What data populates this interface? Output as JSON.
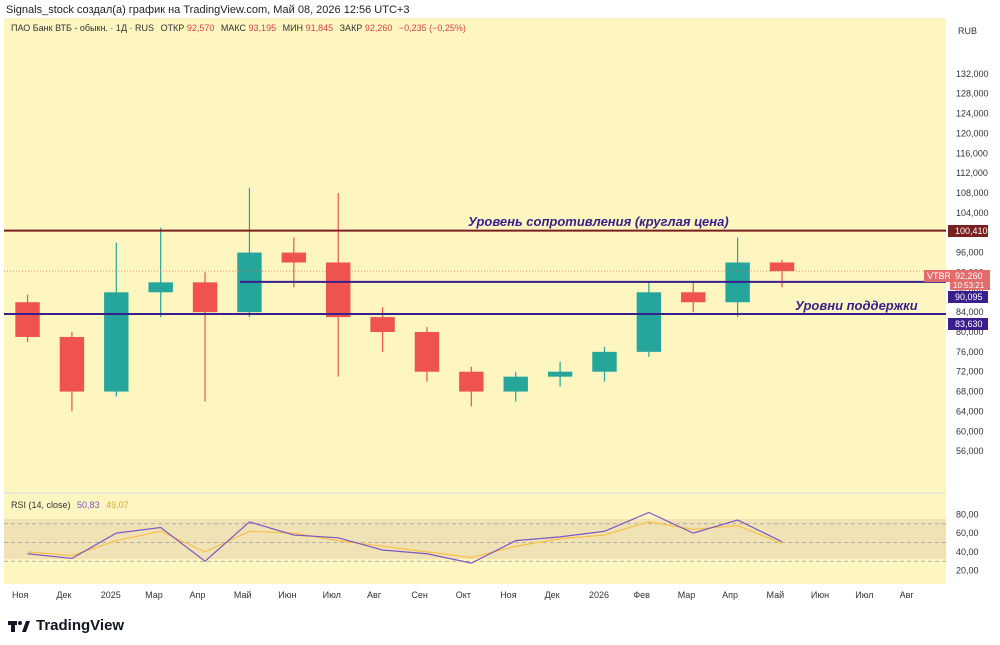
{
  "header": {
    "byline": "Signals_stock создал(а) график на TradingView.com, Май 08, 2026 12:56 UTC+3"
  },
  "legend": {
    "instrument": "ПАО Банк ВТБ - обыкн. · 1Д · RUS",
    "o_label": "ОТКР",
    "o_value": "92,570",
    "h_label": "МАКС",
    "h_value": "93,195",
    "l_label": "МИН",
    "l_value": "91,845",
    "c_label": "ЗАКР",
    "c_value": "92,260",
    "change": "−0,235 (−0,25%)",
    "currency": "RUB",
    "rsi_label": "RSI (14, close)",
    "rsi_value": "50,83",
    "rsi_ma_value": "49,07"
  },
  "annotations": {
    "resistance": "Уровень сопротивления (круглая цена)",
    "support": "Уровни поддержки"
  },
  "price_tags": {
    "resistance": "100,410",
    "support1": "90,095",
    "support2": "83,630",
    "symbol": "VTBR",
    "last": "92,260",
    "countdown": "10:53:21"
  },
  "brand": {
    "logo_text": "TradingView"
  },
  "colors": {
    "background": "#fdf6c1",
    "up": "#26a69a",
    "down": "#ef5350",
    "resistance_line": "#7a1f1f",
    "support_line": "#3a1e8c",
    "rsi_line": "#7e57c2",
    "rsi_ma": "#f7c04a",
    "rsi_band": "#efe3b6"
  },
  "chart_data": [
    {
      "type": "candlestick",
      "title": "ПАО Банк ВТБ - обыкн. · 1Д · RUS",
      "ylabel": "RUB",
      "ylim": [
        52,
        136
      ],
      "x_ticks": [
        "Ноя",
        "Дек",
        "2025",
        "Мар",
        "Апр",
        "Май",
        "Июн",
        "Июл",
        "Авг",
        "Сен",
        "Окт",
        "Ноя",
        "Дек",
        "2026",
        "Фев",
        "Мар",
        "Апр",
        "Май",
        "Июн",
        "Июл",
        "Авг"
      ],
      "y_ticks": [
        "56,000",
        "60,000",
        "64,000",
        "68,000",
        "72,000",
        "76,000",
        "80,000",
        "84,000",
        "88,000",
        "92,000",
        "96,000",
        "100,000",
        "104,000",
        "108,000",
        "112,000",
        "116,000",
        "120,000",
        "124,000",
        "128,000",
        "132,000"
      ],
      "y_tick_values": [
        56,
        60,
        64,
        68,
        72,
        76,
        80,
        84,
        88,
        92,
        96,
        100,
        104,
        108,
        112,
        116,
        120,
        124,
        128,
        132
      ],
      "months": [
        {
          "label": "Ноя",
          "o": 86,
          "h": 87.5,
          "l": 78,
          "c": 79
        },
        {
          "label": "Дек",
          "o": 79,
          "h": 80,
          "l": 64,
          "c": 68
        },
        {
          "label": "2025",
          "o": 68,
          "h": 98,
          "l": 67,
          "c": 88
        },
        {
          "label": "Мар",
          "o": 88,
          "h": 101,
          "l": 83,
          "c": 90
        },
        {
          "label": "Апр",
          "o": 90,
          "h": 92,
          "l": 66,
          "c": 84
        },
        {
          "label": "Май",
          "o": 84,
          "h": 109,
          "l": 83,
          "c": 96
        },
        {
          "label": "Июн",
          "o": 96,
          "h": 99,
          "l": 89,
          "c": 94
        },
        {
          "label": "Июл",
          "o": 94,
          "h": 108,
          "l": 71,
          "c": 83
        },
        {
          "label": "Авг",
          "o": 83,
          "h": 85,
          "l": 76,
          "c": 80
        },
        {
          "label": "Сен",
          "o": 80,
          "h": 81,
          "l": 70,
          "c": 72
        },
        {
          "label": "Окт",
          "o": 72,
          "h": 73,
          "l": 65,
          "c": 68
        },
        {
          "label": "Ноя",
          "o": 68,
          "h": 72,
          "l": 66,
          "c": 71
        },
        {
          "label": "Дек",
          "o": 71,
          "h": 74,
          "l": 69,
          "c": 72
        },
        {
          "label": "2026",
          "o": 72,
          "h": 77,
          "l": 70,
          "c": 76
        },
        {
          "label": "Фев",
          "o": 76,
          "h": 90,
          "l": 75,
          "c": 88
        },
        {
          "label": "Мар",
          "o": 88,
          "h": 90,
          "l": 84,
          "c": 86
        },
        {
          "label": "Апр",
          "o": 86,
          "h": 99,
          "l": 83,
          "c": 94
        },
        {
          "label": "Май",
          "o": 94,
          "h": 94.5,
          "l": 89,
          "c": 92.26
        }
      ],
      "levels": [
        {
          "name": "resistance",
          "value": 100.41
        },
        {
          "name": "support",
          "value": 90.095
        },
        {
          "name": "support",
          "value": 83.63
        }
      ],
      "last_price": 92.26,
      "grid": false
    },
    {
      "type": "line",
      "title": "RSI (14, close)",
      "ylim": [
        10,
        90
      ],
      "y_ticks": [
        "20,00",
        "40,00",
        "60,00",
        "80,00"
      ],
      "y_tick_values": [
        20,
        40,
        60,
        80
      ],
      "bands": [
        30,
        50,
        70
      ],
      "x": [
        "Ноя",
        "Дек",
        "2025",
        "Мар",
        "Апр",
        "Май",
        "Июн",
        "Июл",
        "Авг",
        "Сен",
        "Окт",
        "Ноя",
        "Дек",
        "2026",
        "Фев",
        "Мар",
        "Апр",
        "Май"
      ],
      "series": [
        {
          "name": "RSI",
          "values": [
            38,
            33,
            60,
            66,
            30,
            72,
            58,
            55,
            42,
            38,
            28,
            52,
            56,
            62,
            82,
            60,
            74,
            50.83
          ]
        },
        {
          "name": "MA",
          "values": [
            40,
            36,
            52,
            62,
            40,
            62,
            60,
            52,
            46,
            40,
            34,
            46,
            54,
            58,
            72,
            64,
            68,
            49.07
          ]
        }
      ]
    }
  ]
}
